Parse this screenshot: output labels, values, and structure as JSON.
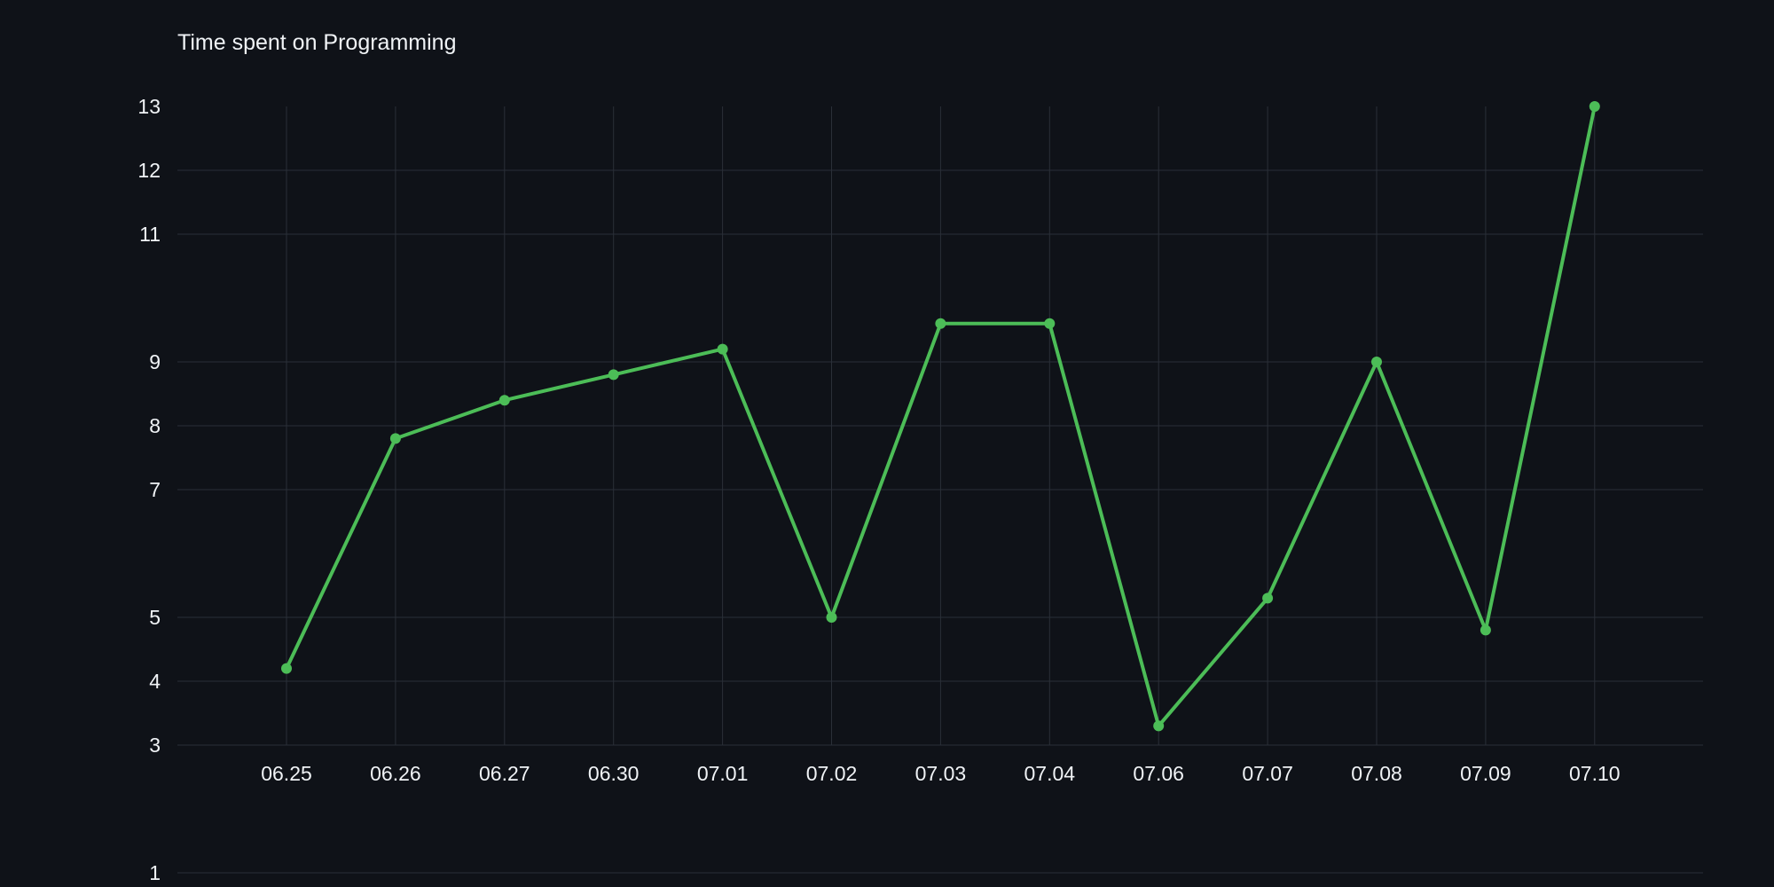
{
  "chart_data": {
    "type": "line",
    "title": "Time spent on Programming",
    "xlabel": "",
    "ylabel": "",
    "categories": [
      "06.25",
      "06.26",
      "06.27",
      "06.30",
      "07.01",
      "07.02",
      "07.03",
      "07.04",
      "07.06",
      "07.07",
      "07.08",
      "07.09",
      "07.10"
    ],
    "y_tick_labels": [
      "1",
      "3",
      "4",
      "5",
      "7",
      "8",
      "9",
      "11",
      "12",
      "13"
    ],
    "series": [
      {
        "values": [
          4.2,
          7.8,
          8.4,
          8.8,
          9.2,
          5.0,
          9.6,
          9.6,
          3.3,
          5.3,
          9.0,
          4.8,
          13.0
        ]
      }
    ],
    "ylim": [
      0,
      13
    ],
    "grid": true,
    "line_color": "#4cbd57",
    "background_color": "#0f1218"
  }
}
